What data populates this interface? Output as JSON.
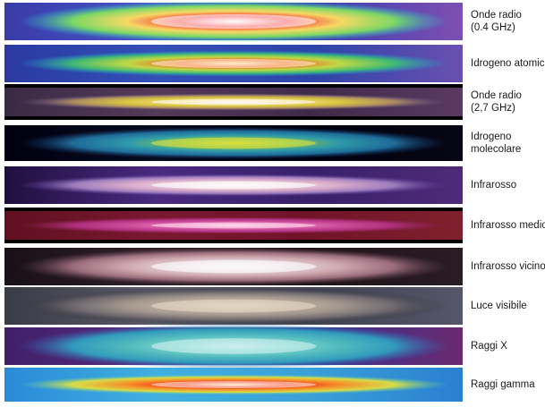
{
  "panels": [
    {
      "label": [
        "Onde radio",
        "(0.4 GHz)"
      ]
    },
    {
      "label": [
        "Idrogeno atomico"
      ]
    },
    {
      "label": [
        "Onde radio",
        "(2,7 GHz)"
      ]
    },
    {
      "label": [
        "Idrogeno",
        "molecolare"
      ]
    },
    {
      "label": [
        "Infrarosso"
      ]
    },
    {
      "label": [
        "Infrarosso medio"
      ]
    },
    {
      "label": [
        "Infrarosso vicino"
      ]
    },
    {
      "label": [
        "Luce visibile"
      ]
    },
    {
      "label": [
        "Raggi X"
      ]
    },
    {
      "label": [
        "Raggi gamma"
      ]
    }
  ]
}
